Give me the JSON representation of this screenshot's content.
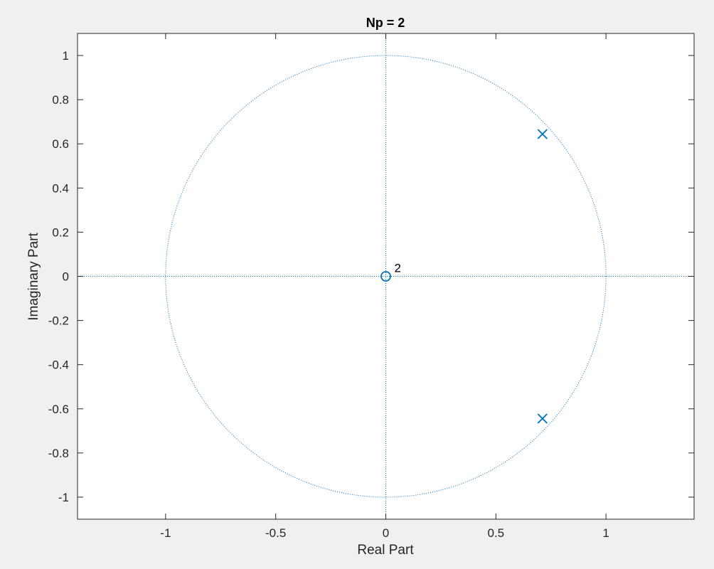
{
  "chart_data": {
    "type": "scatter",
    "title": "Np = 2",
    "xlabel": "Real Part",
    "ylabel": "Imaginary Part",
    "xlim": [
      -1.4,
      1.4
    ],
    "ylim": [
      -1.1,
      1.1
    ],
    "xticks": [
      -1,
      -0.5,
      0,
      0.5,
      1
    ],
    "xtick_labels": [
      "-1",
      "-0.5",
      "0",
      "0.5",
      "1"
    ],
    "yticks": [
      -1,
      -0.8,
      -0.6,
      -0.4,
      -0.2,
      0,
      0.2,
      0.4,
      0.6,
      0.8,
      1
    ],
    "ytick_labels": [
      "-1",
      "-0.8",
      "-0.6",
      "-0.4",
      "-0.2",
      "0",
      "0.2",
      "0.4",
      "0.6",
      "0.8",
      "1"
    ],
    "grid": false,
    "unit_circle": {
      "radius": 1,
      "style": "dotted"
    },
    "zeros": [
      {
        "re": 0,
        "im": 0,
        "multiplicity_label": "2"
      }
    ],
    "poles": [
      {
        "re": 0.7115,
        "im": 0.6442
      },
      {
        "re": 0.7115,
        "im": -0.6442
      }
    ],
    "colors": {
      "marker": "#0072bd",
      "axes": "#262626",
      "background": "#f0f0f0",
      "plot_area": "#ffffff"
    }
  }
}
